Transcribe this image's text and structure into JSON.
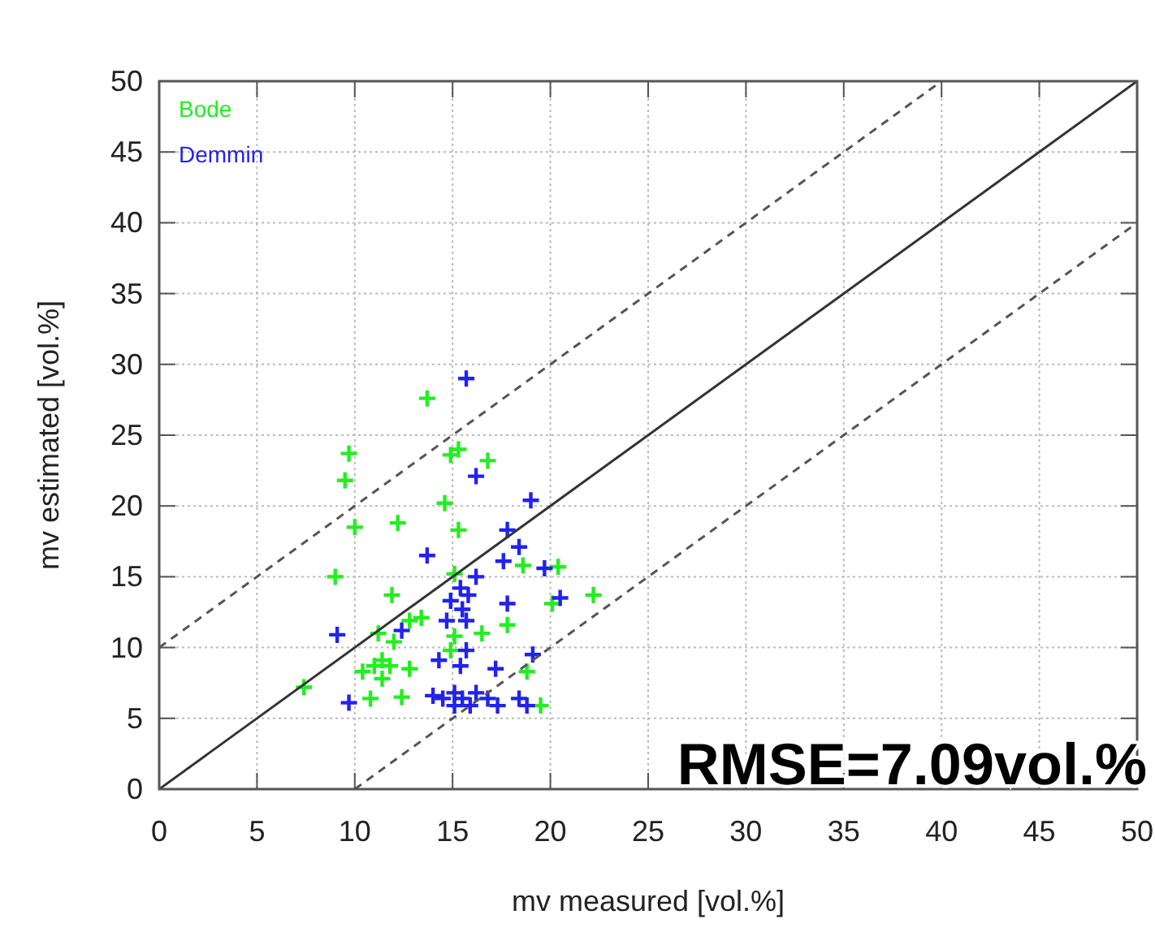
{
  "chart_data": {
    "type": "scatter",
    "xlabel": "mv measured [vol.%]",
    "ylabel": "mv estimated [vol.%]",
    "xlim": [
      0,
      50
    ],
    "ylim": [
      0,
      50
    ],
    "xticks": [
      0,
      5,
      10,
      15,
      20,
      25,
      30,
      35,
      40,
      45,
      50
    ],
    "yticks": [
      0,
      5,
      10,
      15,
      20,
      25,
      30,
      35,
      40,
      45,
      50
    ],
    "grid": true,
    "legend": "top left",
    "marker": "cross",
    "annotations": [
      "RMSE=7.09vol.%"
    ],
    "series": [
      {
        "name": "Bode",
        "color": "#22ee22",
        "x": [
          13.7,
          9.7,
          9.5,
          14.9,
          15.3,
          16.8,
          14.6,
          10.0,
          12.2,
          15.3,
          9.0,
          18.6,
          20.4,
          11.9,
          15.1,
          20.1,
          12.8,
          13.4,
          17.8,
          11.2,
          12.0,
          15.1,
          16.5,
          14.9,
          11.4,
          11.0,
          11.8,
          10.4,
          12.8,
          11.4,
          18.8,
          10.8,
          12.4,
          19.5,
          7.4,
          22.2
        ],
        "values": [
          27.6,
          23.7,
          21.8,
          23.6,
          24.0,
          23.2,
          20.2,
          18.5,
          18.8,
          18.3,
          15.0,
          15.8,
          15.7,
          13.7,
          15.2,
          13.1,
          11.9,
          12.1,
          11.6,
          11.0,
          10.4,
          10.8,
          11.0,
          9.8,
          9.1,
          8.7,
          8.7,
          8.3,
          8.5,
          7.8,
          8.3,
          6.4,
          6.5,
          5.9,
          7.2,
          13.7
        ]
      },
      {
        "name": "Demmin",
        "color": "#2222ee",
        "x": [
          15.7,
          16.2,
          19.0,
          17.8,
          18.4,
          13.7,
          17.6,
          19.7,
          16.2,
          15.4,
          15.8,
          14.9,
          17.8,
          20.5,
          15.5,
          14.7,
          15.7,
          9.1,
          12.4,
          15.7,
          19.1,
          14.3,
          15.4,
          17.2,
          9.7,
          14.0,
          14.5,
          15.1,
          15.5,
          16.2,
          16.8,
          17.3,
          18.4,
          18.8,
          15.1,
          15.9
        ],
        "values": [
          29.0,
          22.1,
          20.4,
          18.3,
          17.1,
          16.5,
          16.1,
          15.6,
          15.0,
          14.2,
          13.7,
          13.3,
          13.1,
          13.5,
          12.7,
          11.9,
          11.9,
          10.9,
          11.2,
          9.8,
          9.5,
          9.1,
          8.7,
          8.5,
          6.1,
          6.6,
          6.4,
          6.8,
          6.4,
          6.8,
          6.4,
          5.9,
          6.4,
          5.9,
          5.9,
          5.9
        ]
      },
      {
        "type": "line",
        "marker": "none",
        "color": "#333333",
        "line_style": "solid",
        "x": [
          0,
          50
        ],
        "values": [
          0,
          50
        ]
      },
      {
        "type": "line",
        "marker": "none",
        "color": "#555555",
        "line_style": "dashed",
        "x": [
          0,
          40
        ],
        "values": [
          10,
          50
        ]
      },
      {
        "type": "line",
        "marker": "none",
        "color": "#555555",
        "line_style": "dashed",
        "x": [
          10,
          50
        ],
        "values": [
          0,
          40
        ]
      }
    ]
  }
}
